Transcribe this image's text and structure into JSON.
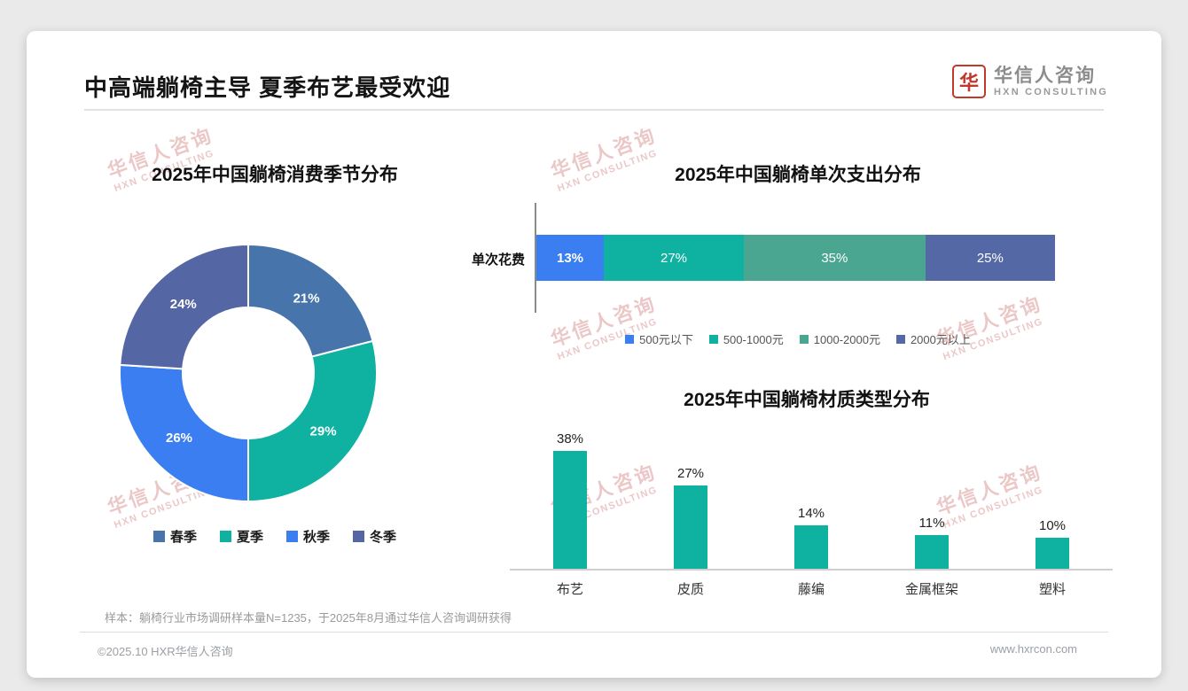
{
  "header": {
    "title": "中高端躺椅主导 夏季布艺最受欢迎",
    "logo_cn": "华信人咨询",
    "logo_en": "HXN CONSULTING",
    "logo_mark": "华"
  },
  "watermark": {
    "line1": "华信人咨询",
    "line2": "HXN CONSULTING"
  },
  "chart_data": [
    {
      "type": "pie",
      "variant": "donut",
      "title": "2025年中国躺椅消费季节分布",
      "labels": [
        "春季",
        "夏季",
        "秋季",
        "冬季"
      ],
      "values": [
        21,
        29,
        26,
        24
      ],
      "unit": "%",
      "colors": [
        "#4674ab",
        "#0fb2a1",
        "#3b7ef2",
        "#5566a4"
      ],
      "legend_position": "bottom"
    },
    {
      "type": "bar",
      "variant": "stacked-horizontal",
      "title": "2025年中国躺椅单次支出分布",
      "row_label": "单次花费",
      "categories": [
        "500元以下",
        "500-1000元",
        "1000-2000元",
        "2000元以上"
      ],
      "values": [
        13,
        27,
        35,
        25
      ],
      "unit": "%",
      "colors": [
        "#3b7ef2",
        "#0fb2a1",
        "#4aa690",
        "#5568a6"
      ],
      "legend_position": "bottom"
    },
    {
      "type": "bar",
      "variant": "vertical",
      "title": "2025年中国躺椅材质类型分布",
      "categories": [
        "布艺",
        "皮质",
        "藤编",
        "金属框架",
        "塑料"
      ],
      "values": [
        38,
        27,
        14,
        11,
        10
      ],
      "unit": "%",
      "color": "#0fb2a1",
      "ylim": [
        0,
        40
      ],
      "grid": false
    }
  ],
  "footer": {
    "note": "样本：躺椅行业市场调研样本量N=1235，于2025年8月通过华信人咨询调研获得",
    "copyright": "©2025.10 HXR华信人咨询",
    "website": "www.hxrcon.com"
  }
}
